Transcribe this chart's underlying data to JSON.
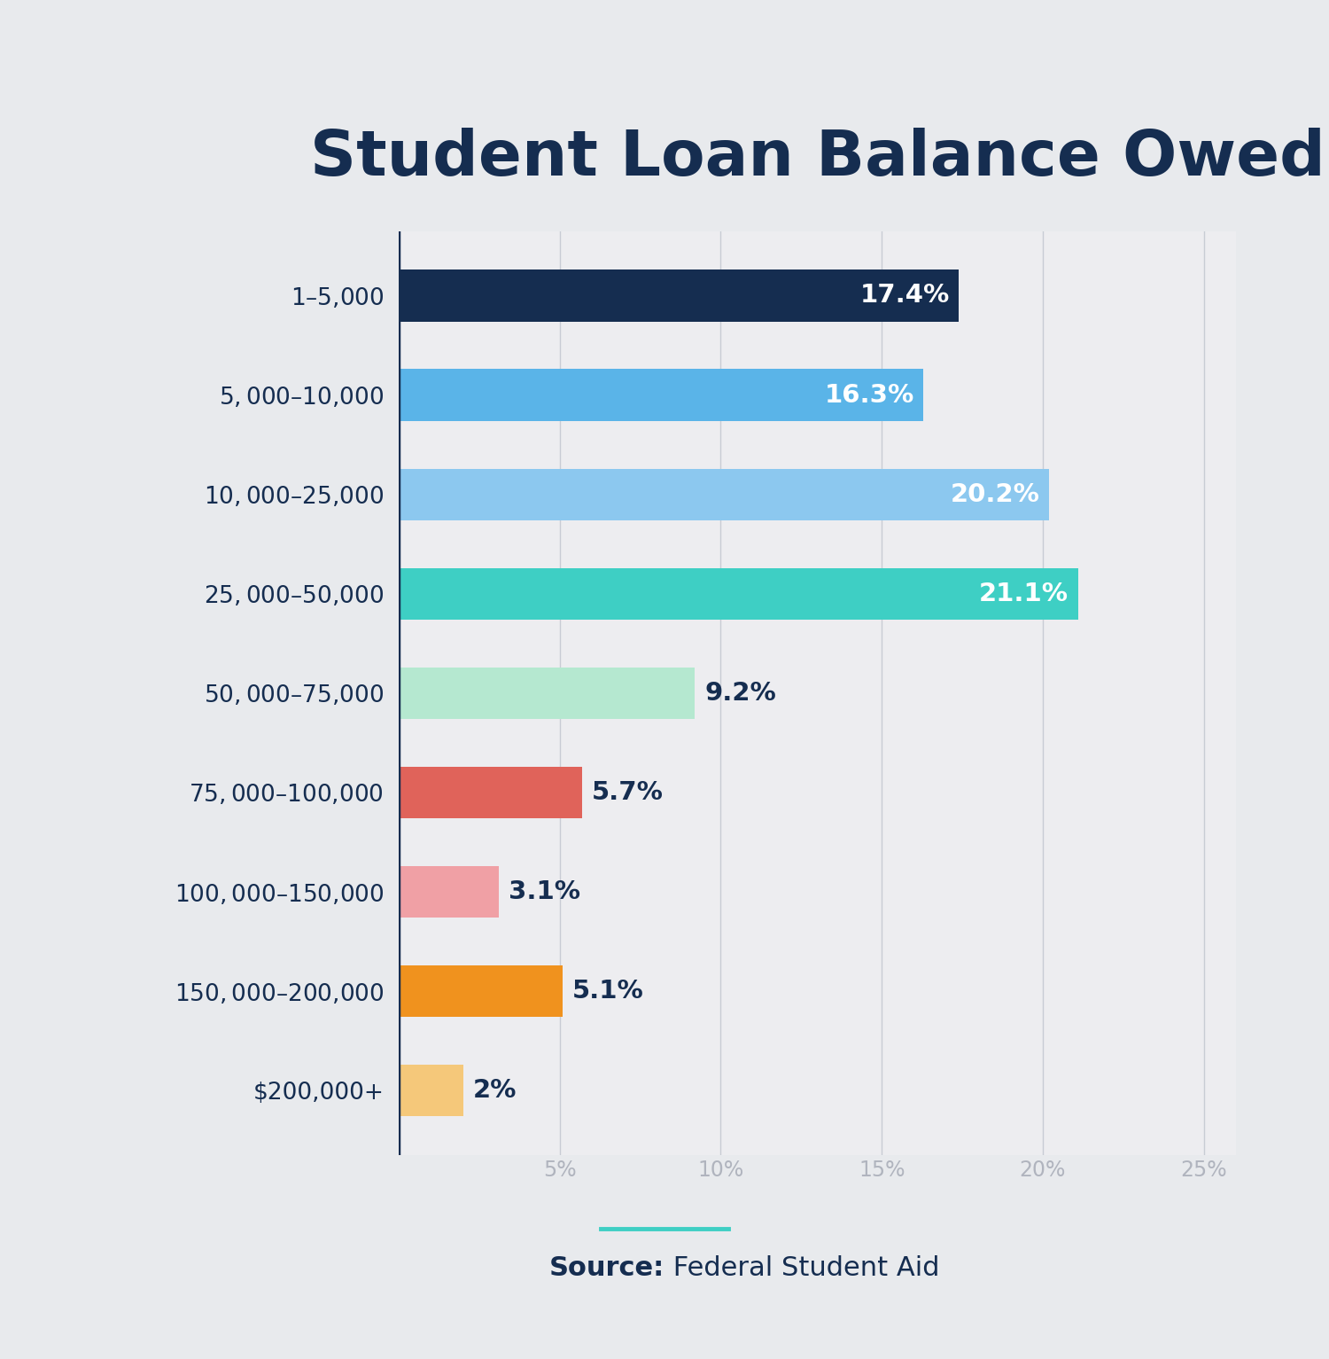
{
  "title": "Student Loan Balance Owed",
  "categories": [
    "$1–$5,000",
    "$5,000–$10,000",
    "$10,000–$25,000",
    "$25,000–$50,000",
    "$50,000–$75,000",
    "$75,000–$100,000",
    "$100,000–$150,000",
    "$150,000–$200,000",
    "$200,000+"
  ],
  "values": [
    17.4,
    16.3,
    20.2,
    21.1,
    9.2,
    5.7,
    3.1,
    5.1,
    2.0
  ],
  "labels": [
    "17.4%",
    "16.3%",
    "20.2%",
    "21.1%",
    "9.2%",
    "5.7%",
    "3.1%",
    "5.1%",
    "2%"
  ],
  "bar_colors": [
    "#152d50",
    "#5ab4e8",
    "#8cc8ef",
    "#3ecfc4",
    "#b5e8d0",
    "#e0635a",
    "#f0a0a5",
    "#f0921e",
    "#f5c87a"
  ],
  "label_inside": [
    true,
    true,
    true,
    true,
    false,
    false,
    false,
    false,
    false
  ],
  "label_inside_color": "#ffffff",
  "label_outside_color": "#152d50",
  "background_color": "#e8eaed",
  "plot_bg_color": "#ededf0",
  "title_color": "#152d50",
  "tick_color": "#b0b4be",
  "axis_line_color": "#152d50",
  "source_text_bold": "Source:",
  "source_text_normal": " Federal Student Aid",
  "source_line_color": "#3ecfc4",
  "xlim": [
    0,
    26
  ],
  "xticks": [
    0,
    5,
    10,
    15,
    20,
    25
  ],
  "xtick_labels": [
    "",
    "5%",
    "10%",
    "15%",
    "20%",
    "25%"
  ]
}
